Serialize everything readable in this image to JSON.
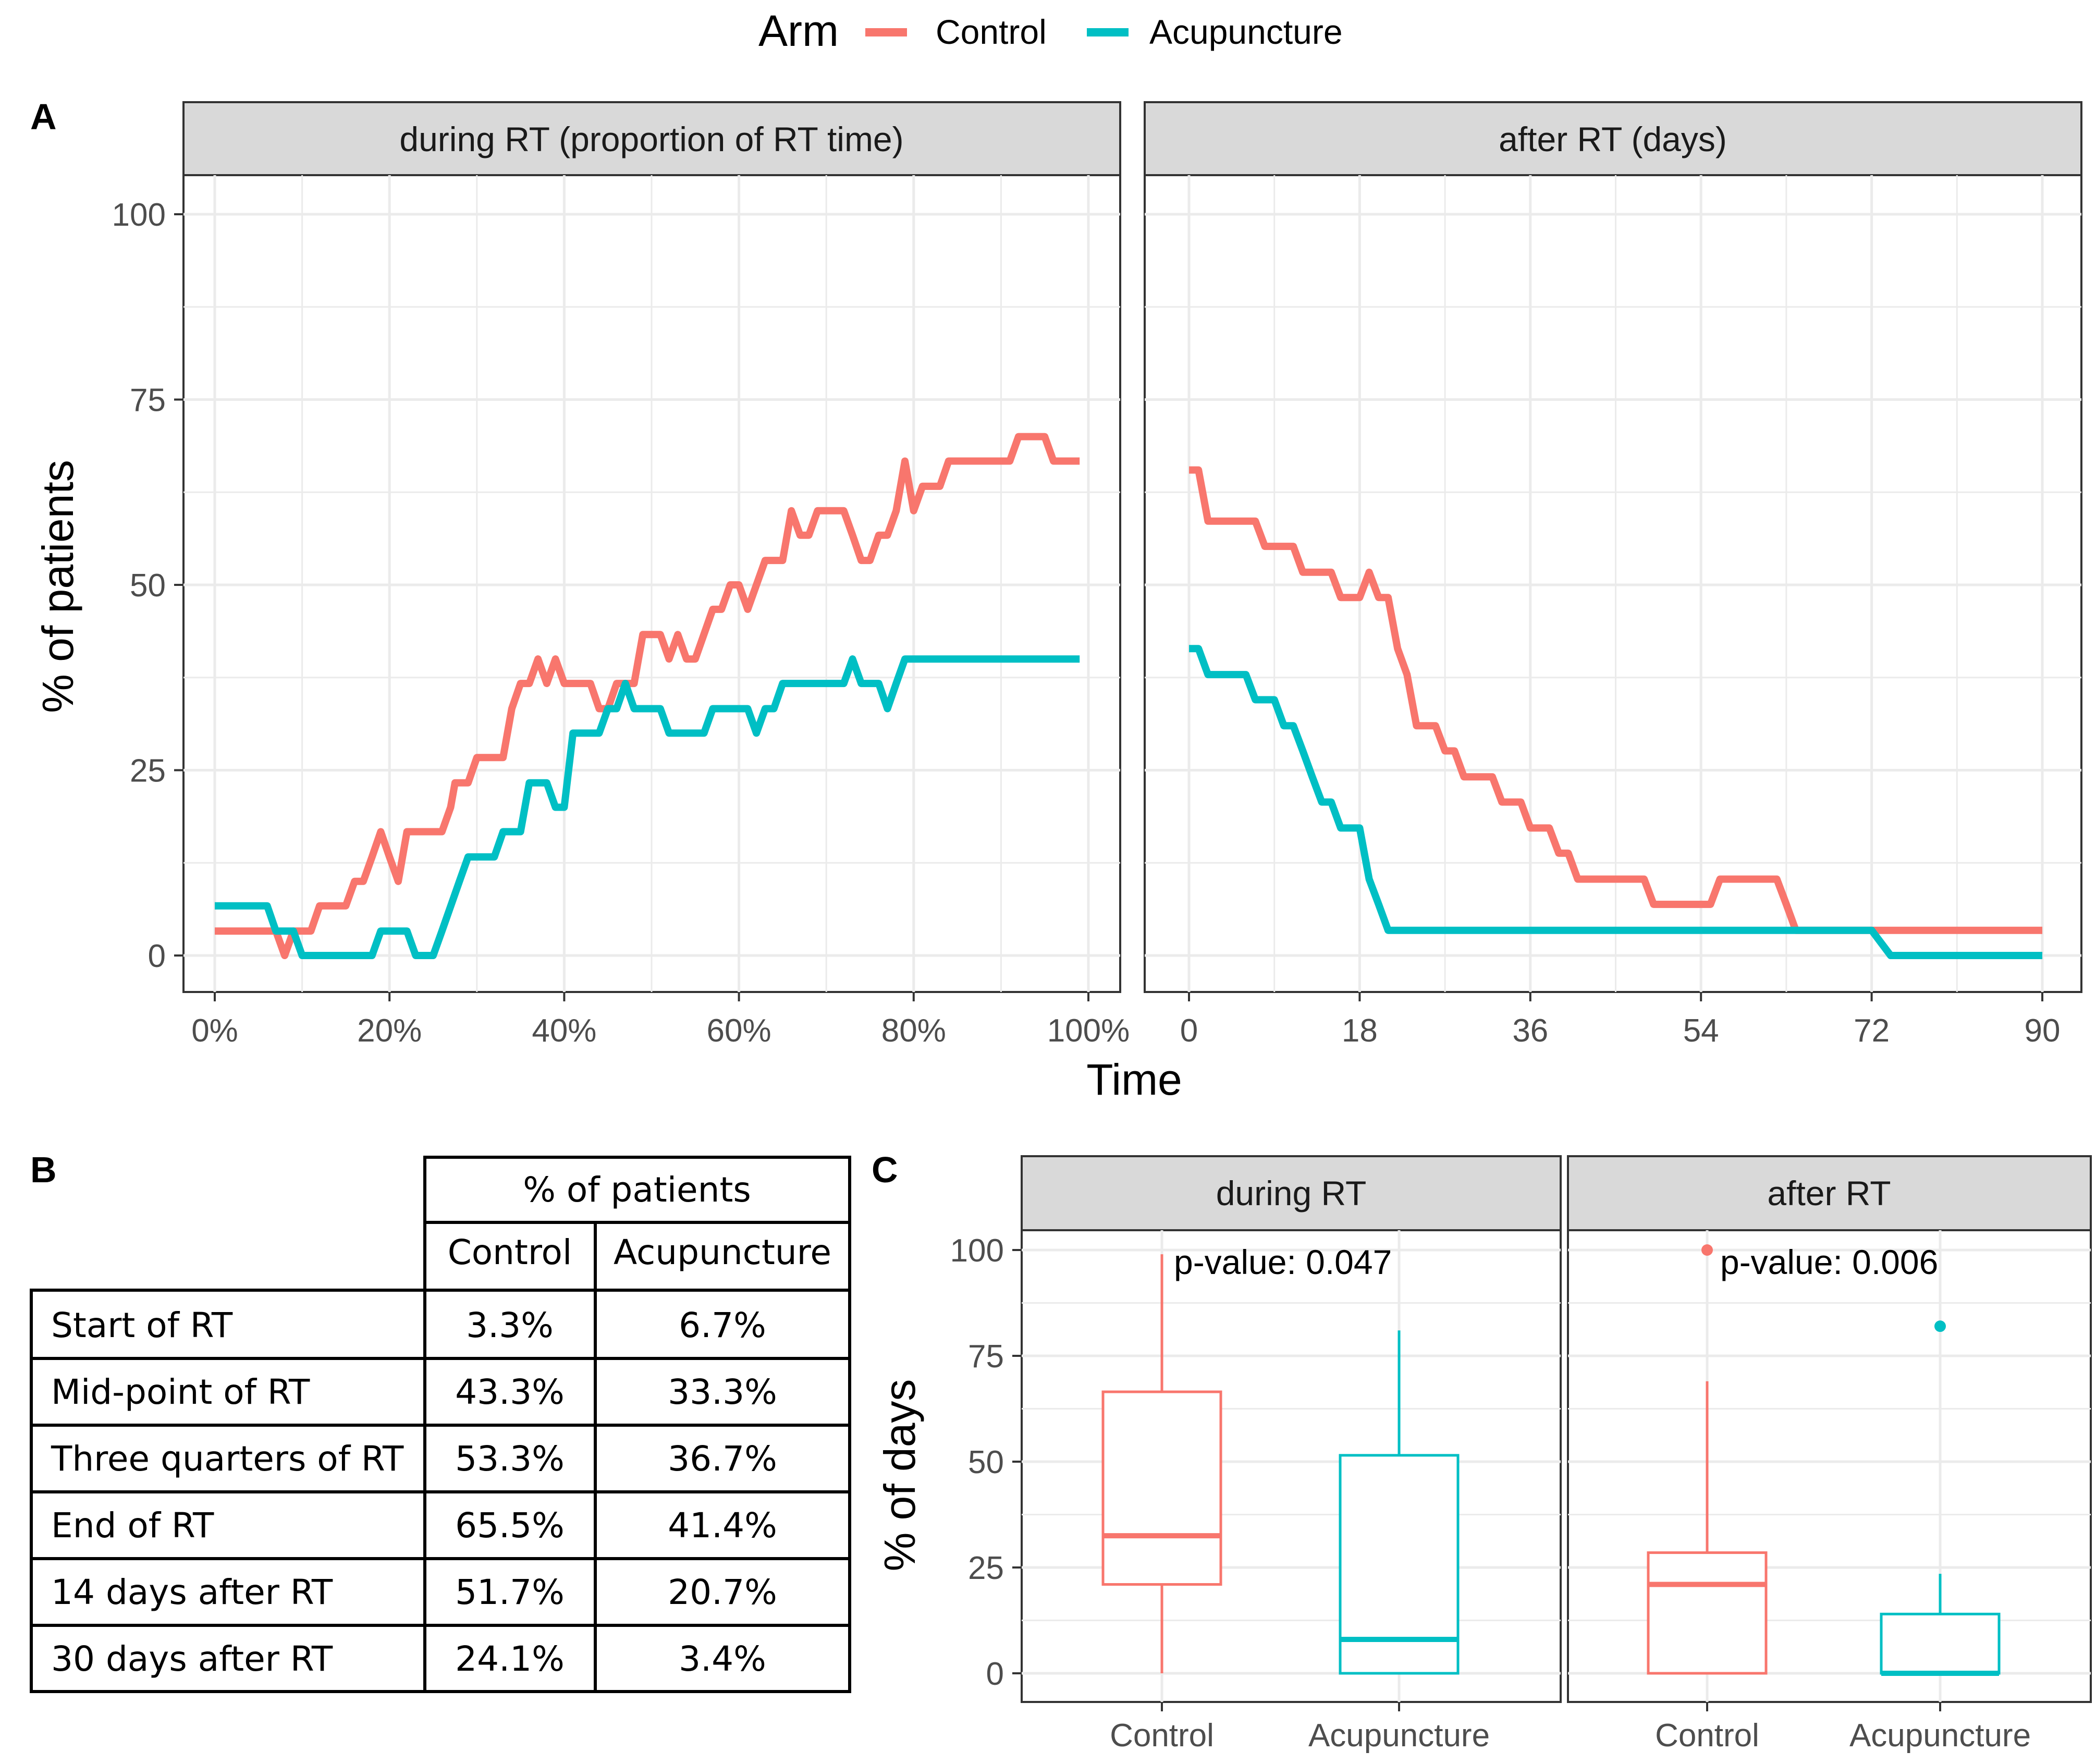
{
  "colors": {
    "control": "#F8766D",
    "acupuncture": "#00BFC4",
    "strip_bg": "#D9D9D9",
    "grid": "#EBEBEB"
  },
  "legend": {
    "title": "Arm",
    "items": [
      "Control",
      "Acupuncture"
    ]
  },
  "panel_labels": {
    "a": "A",
    "b": "B",
    "c": "C"
  },
  "chart_data": [
    {
      "id": "A-during",
      "type": "line",
      "strip": "during RT (proportion of RT time)",
      "xlim": [
        0,
        100
      ],
      "xticks": [
        "0%",
        "20%",
        "40%",
        "60%",
        "80%",
        "100%"
      ],
      "xtick_values": [
        0,
        20,
        40,
        60,
        80,
        100
      ],
      "ylim": [
        0,
        100
      ],
      "yticks": [
        "0",
        "25",
        "50",
        "75",
        "100"
      ],
      "ytick_values": [
        0,
        25,
        50,
        75,
        100
      ],
      "ylabel": "% of patients",
      "series": [
        {
          "name": "Control",
          "points": [
            [
              0,
              3.3
            ],
            [
              7,
              3.3
            ],
            [
              8,
              0
            ],
            [
              9,
              3.3
            ],
            [
              11,
              3.3
            ],
            [
              12,
              6.7
            ],
            [
              15,
              6.7
            ],
            [
              16,
              10
            ],
            [
              17,
              10
            ],
            [
              18,
              13.3
            ],
            [
              19,
              16.7
            ],
            [
              20,
              13.3
            ],
            [
              21,
              10
            ],
            [
              22,
              16.7
            ],
            [
              26,
              16.7
            ],
            [
              27,
              20
            ],
            [
              27.5,
              23.3
            ],
            [
              29,
              23.3
            ],
            [
              30,
              26.7
            ],
            [
              33,
              26.7
            ],
            [
              34,
              33.3
            ],
            [
              35,
              36.7
            ],
            [
              36,
              36.7
            ],
            [
              37,
              40
            ],
            [
              38,
              36.7
            ],
            [
              39,
              40
            ],
            [
              40,
              36.7
            ],
            [
              43,
              36.7
            ],
            [
              44,
              33.3
            ],
            [
              45,
              33.3
            ],
            [
              46,
              36.7
            ],
            [
              48,
              36.7
            ],
            [
              49,
              43.3
            ],
            [
              51,
              43.3
            ],
            [
              52,
              40
            ],
            [
              53,
              43.3
            ],
            [
              54,
              40
            ],
            [
              55,
              40
            ],
            [
              57,
              46.7
            ],
            [
              58,
              46.7
            ],
            [
              59,
              50
            ],
            [
              60,
              50
            ],
            [
              61,
              46.7
            ],
            [
              63,
              53.3
            ],
            [
              65,
              53.3
            ],
            [
              66,
              60
            ],
            [
              67,
              56.7
            ],
            [
              68,
              56.7
            ],
            [
              69,
              60
            ],
            [
              72,
              60
            ],
            [
              73,
              56.7
            ],
            [
              74,
              53.3
            ],
            [
              75,
              53.3
            ],
            [
              76,
              56.7
            ],
            [
              77,
              56.7
            ],
            [
              78,
              60
            ],
            [
              79,
              66.7
            ],
            [
              80,
              60
            ],
            [
              81,
              63.3
            ],
            [
              83,
              63.3
            ],
            [
              84,
              66.7
            ],
            [
              90,
              66.7
            ],
            [
              91,
              66.7
            ],
            [
              92,
              70
            ],
            [
              95,
              70
            ],
            [
              96,
              66.7
            ],
            [
              99,
              66.7
            ]
          ]
        },
        {
          "name": "Acupuncture",
          "points": [
            [
              0,
              6.7
            ],
            [
              6,
              6.7
            ],
            [
              7,
              3.3
            ],
            [
              9,
              3.3
            ],
            [
              10,
              0
            ],
            [
              18,
              0
            ],
            [
              19,
              3.3
            ],
            [
              22,
              3.3
            ],
            [
              23,
              0
            ],
            [
              25,
              0
            ],
            [
              26,
              3.3
            ],
            [
              28,
              10
            ],
            [
              29,
              13.3
            ],
            [
              32,
              13.3
            ],
            [
              33,
              16.7
            ],
            [
              35,
              16.7
            ],
            [
              36,
              23.3
            ],
            [
              38,
              23.3
            ],
            [
              39,
              20
            ],
            [
              40,
              20
            ],
            [
              41,
              30
            ],
            [
              44,
              30
            ],
            [
              45,
              33.3
            ],
            [
              46,
              33.3
            ],
            [
              47,
              36.7
            ],
            [
              48,
              33.3
            ],
            [
              51,
              33.3
            ],
            [
              52,
              30
            ],
            [
              56,
              30
            ],
            [
              57,
              33.3
            ],
            [
              61,
              33.3
            ],
            [
              62,
              30
            ],
            [
              63,
              33.3
            ],
            [
              64,
              33.3
            ],
            [
              65,
              36.7
            ],
            [
              72,
              36.7
            ],
            [
              73,
              40
            ],
            [
              74,
              36.7
            ],
            [
              76,
              36.7
            ],
            [
              77,
              33.3
            ],
            [
              78,
              36.7
            ],
            [
              79,
              40
            ],
            [
              99,
              40
            ]
          ]
        }
      ]
    },
    {
      "id": "A-after",
      "type": "line",
      "strip": "after RT (days)",
      "xlim": [
        0,
        90
      ],
      "xticks": [
        "0",
        "18",
        "36",
        "54",
        "72",
        "90"
      ],
      "xtick_values": [
        0,
        18,
        36,
        54,
        72,
        90
      ],
      "ylim": [
        0,
        100
      ],
      "xlabel": "Time",
      "series": [
        {
          "name": "Control",
          "points": [
            [
              0,
              65.5
            ],
            [
              1,
              65.5
            ],
            [
              2,
              58.6
            ],
            [
              7,
              58.6
            ],
            [
              8,
              55.2
            ],
            [
              11,
              55.2
            ],
            [
              12,
              51.7
            ],
            [
              15,
              51.7
            ],
            [
              16,
              48.3
            ],
            [
              18,
              48.3
            ],
            [
              19,
              51.7
            ],
            [
              20,
              48.3
            ],
            [
              21,
              48.3
            ],
            [
              22,
              41.4
            ],
            [
              23,
              37.9
            ],
            [
              24,
              31
            ],
            [
              26,
              31
            ],
            [
              27,
              27.6
            ],
            [
              28,
              27.6
            ],
            [
              29,
              24.1
            ],
            [
              32,
              24.1
            ],
            [
              33,
              20.7
            ],
            [
              35,
              20.7
            ],
            [
              36,
              17.2
            ],
            [
              38,
              17.2
            ],
            [
              39,
              13.8
            ],
            [
              40,
              13.8
            ],
            [
              41,
              10.3
            ],
            [
              48,
              10.3
            ],
            [
              49,
              6.9
            ],
            [
              55,
              6.9
            ],
            [
              56,
              10.3
            ],
            [
              62,
              10.3
            ],
            [
              63,
              6.9
            ],
            [
              64,
              3.4
            ],
            [
              90,
              3.4
            ]
          ]
        },
        {
          "name": "Acupuncture",
          "points": [
            [
              0,
              41.4
            ],
            [
              1,
              41.4
            ],
            [
              2,
              37.9
            ],
            [
              6,
              37.9
            ],
            [
              7,
              34.5
            ],
            [
              9,
              34.5
            ],
            [
              10,
              31
            ],
            [
              11,
              31
            ],
            [
              12,
              27.6
            ],
            [
              13,
              24.1
            ],
            [
              14,
              20.7
            ],
            [
              15,
              20.7
            ],
            [
              16,
              17.2
            ],
            [
              18,
              17.2
            ],
            [
              19,
              10.3
            ],
            [
              20,
              6.9
            ],
            [
              21,
              3.4
            ],
            [
              72,
              3.4
            ],
            [
              74,
              0
            ],
            [
              90,
              0
            ]
          ]
        }
      ]
    },
    {
      "id": "C-during",
      "type": "box",
      "strip": "during RT",
      "categories": [
        "Control",
        "Acupuncture"
      ],
      "ylim": [
        0,
        100
      ],
      "yticks": [
        "0",
        "25",
        "50",
        "75",
        "100"
      ],
      "ytick_values": [
        0,
        25,
        50,
        75,
        100
      ],
      "ylabel": "% of days",
      "annotation": "p-value: 0.047",
      "boxes": [
        {
          "name": "Control",
          "min": 0,
          "q1": 21,
          "median": 32.5,
          "q3": 66.5,
          "max": 99,
          "outliers": []
        },
        {
          "name": "Acupuncture",
          "min": 0,
          "q1": 0,
          "median": 8,
          "q3": 51.5,
          "max": 81,
          "outliers": []
        }
      ]
    },
    {
      "id": "C-after",
      "type": "box",
      "strip": "after RT",
      "categories": [
        "Control",
        "Acupuncture"
      ],
      "ylim": [
        0,
        100
      ],
      "annotation": "p-value: 0.006",
      "boxes": [
        {
          "name": "Control",
          "min": 0,
          "q1": 0,
          "median": 21,
          "q3": 28.5,
          "max": 69,
          "outliers": [
            100
          ]
        },
        {
          "name": "Acupuncture",
          "min": 0,
          "q1": 0,
          "median": 0,
          "q3": 14,
          "max": 23.5,
          "outliers": [
            82
          ]
        }
      ]
    }
  ],
  "table": {
    "header_group": "% of patients",
    "columns": [
      "Control",
      "Acupuncture"
    ],
    "rows": [
      {
        "label": "Start of RT",
        "control": "3.3%",
        "acupuncture": "6.7%"
      },
      {
        "label": "Mid-point of RT",
        "control": "43.3%",
        "acupuncture": "33.3%"
      },
      {
        "label": "Three quarters of RT",
        "control": "53.3%",
        "acupuncture": "36.7%"
      },
      {
        "label": "End of RT",
        "control": "65.5%",
        "acupuncture": "41.4%"
      },
      {
        "label": "14 days after RT",
        "control": "51.7%",
        "acupuncture": "20.7%"
      },
      {
        "label": "30 days after RT",
        "control": "24.1%",
        "acupuncture": "3.4%"
      }
    ]
  }
}
